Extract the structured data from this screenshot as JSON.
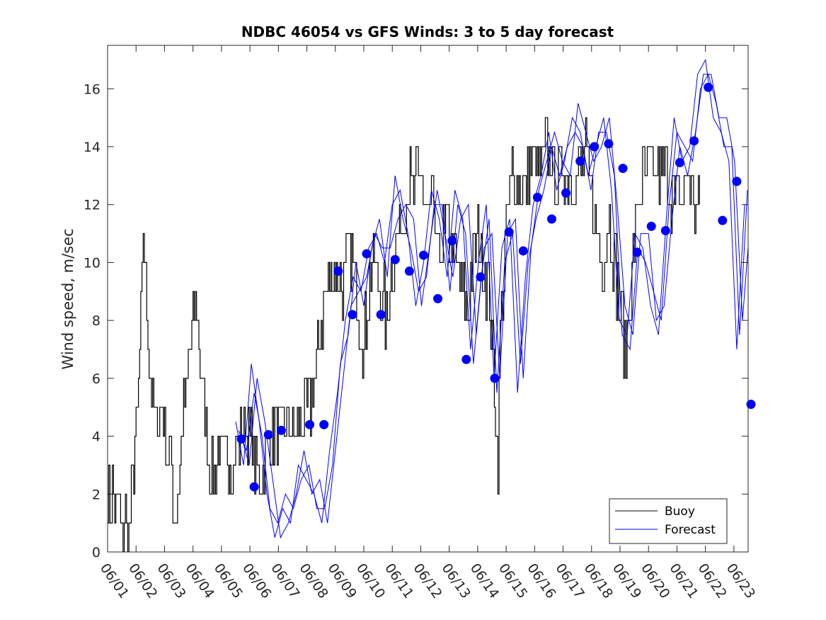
{
  "chart_data": {
    "type": "line",
    "title": "NDBC 46054 vs GFS Winds: 3 to 5 day forecast",
    "xlabel": "",
    "ylabel": "Wind speed, m/sec",
    "ylim": [
      0,
      17.5
    ],
    "yticks": [
      0,
      2,
      4,
      6,
      8,
      10,
      12,
      14,
      16
    ],
    "xlim_day": [
      0,
      22.5
    ],
    "xtick_labels": [
      "06/01",
      "06/02",
      "06/03",
      "06/04",
      "06/05",
      "06/06",
      "06/07",
      "06/08",
      "06/09",
      "06/10",
      "06/11",
      "06/12",
      "06/13",
      "06/14",
      "06/15",
      "06/16",
      "06/17",
      "06/18",
      "06/19",
      "06/20",
      "06/21",
      "06/22",
      "06/23"
    ],
    "grid": false,
    "legend": {
      "placement": "bottom-right",
      "entries": [
        "Buoy",
        "Forecast"
      ]
    },
    "colors": {
      "buoy": "#000000",
      "forecast": "#0000ff"
    },
    "buoy_profile": [
      [
        0.0,
        2.0
      ],
      [
        0.1,
        1.0
      ],
      [
        0.2,
        2.5
      ],
      [
        0.3,
        1.0
      ],
      [
        0.4,
        2.0
      ],
      [
        0.5,
        0.5
      ],
      [
        0.6,
        1.5
      ],
      [
        0.7,
        0.5
      ],
      [
        0.8,
        1.0
      ],
      [
        0.9,
        3.0
      ],
      [
        1.0,
        4.0
      ],
      [
        1.1,
        6.0
      ],
      [
        1.2,
        9.0
      ],
      [
        1.25,
        11.0
      ],
      [
        1.35,
        9.0
      ],
      [
        1.45,
        7.0
      ],
      [
        1.6,
        5.0
      ],
      [
        1.75,
        4.5
      ],
      [
        1.9,
        5.0
      ],
      [
        2.0,
        4.0
      ],
      [
        2.1,
        3.5
      ],
      [
        2.2,
        3.0
      ],
      [
        2.3,
        2.0
      ],
      [
        2.4,
        1.0
      ],
      [
        2.5,
        2.5
      ],
      [
        2.6,
        4.0
      ],
      [
        2.7,
        5.0
      ],
      [
        2.8,
        6.0
      ],
      [
        2.9,
        7.0
      ],
      [
        3.0,
        8.0
      ],
      [
        3.1,
        8.5
      ],
      [
        3.2,
        7.0
      ],
      [
        3.3,
        6.0
      ],
      [
        3.4,
        5.0
      ],
      [
        3.5,
        3.5
      ],
      [
        3.6,
        3.0
      ],
      [
        3.7,
        2.5
      ],
      [
        3.8,
        3.0
      ],
      [
        3.9,
        3.5
      ],
      [
        4.0,
        3.0
      ],
      [
        4.2,
        3.5
      ],
      [
        4.4,
        3.0
      ],
      [
        4.6,
        4.0
      ],
      [
        4.8,
        4.5
      ],
      [
        5.0,
        4.0
      ],
      [
        5.2,
        3.0
      ],
      [
        5.4,
        2.5
      ],
      [
        5.6,
        3.5
      ],
      [
        5.8,
        4.0
      ],
      [
        6.0,
        4.5
      ],
      [
        6.2,
        4.0
      ],
      [
        6.4,
        4.5
      ],
      [
        6.6,
        4.0
      ],
      [
        6.8,
        4.5
      ],
      [
        7.0,
        4.5
      ],
      [
        7.2,
        5.5
      ],
      [
        7.4,
        7.0
      ],
      [
        7.6,
        8.5
      ],
      [
        7.8,
        9.5
      ],
      [
        8.0,
        10.0
      ],
      [
        8.2,
        9.0
      ],
      [
        8.4,
        10.0
      ],
      [
        8.6,
        10.5
      ],
      [
        8.8,
        8.5
      ],
      [
        9.0,
        7.0
      ],
      [
        9.2,
        9.5
      ],
      [
        9.4,
        10.0
      ],
      [
        9.6,
        9.0
      ],
      [
        9.8,
        8.0
      ],
      [
        10.0,
        10.0
      ],
      [
        10.2,
        11.0
      ],
      [
        10.4,
        12.0
      ],
      [
        10.6,
        13.0
      ],
      [
        10.8,
        12.5
      ],
      [
        11.0,
        13.5
      ],
      [
        11.2,
        11.0
      ],
      [
        11.4,
        12.0
      ],
      [
        11.6,
        10.0
      ],
      [
        11.8,
        11.0
      ],
      [
        12.0,
        11.0
      ],
      [
        12.2,
        10.0
      ],
      [
        12.4,
        9.5
      ],
      [
        12.6,
        8.0
      ],
      [
        12.8,
        10.0
      ],
      [
        13.0,
        11.0
      ],
      [
        13.2,
        10.0
      ],
      [
        13.4,
        9.0
      ],
      [
        13.6,
        5.0
      ],
      [
        13.7,
        2.5
      ],
      [
        13.8,
        8.0
      ],
      [
        14.0,
        11.0
      ],
      [
        14.2,
        13.0
      ],
      [
        14.4,
        13.0
      ],
      [
        14.6,
        12.5
      ],
      [
        14.8,
        13.0
      ],
      [
        15.0,
        13.5
      ],
      [
        15.2,
        13.0
      ],
      [
        15.4,
        14.0
      ],
      [
        15.6,
        13.5
      ],
      [
        15.8,
        13.0
      ],
      [
        16.0,
        13.5
      ],
      [
        16.2,
        13.0
      ],
      [
        16.4,
        13.0
      ],
      [
        16.6,
        13.0
      ],
      [
        16.8,
        13.5
      ],
      [
        17.0,
        12.0
      ],
      [
        17.2,
        11.0
      ],
      [
        17.4,
        10.0
      ],
      [
        17.6,
        11.5
      ],
      [
        17.8,
        10.0
      ],
      [
        18.0,
        8.5
      ],
      [
        18.2,
        7.0
      ],
      [
        18.4,
        9.5
      ],
      [
        18.6,
        12.0
      ],
      [
        18.8,
        13.0
      ],
      [
        19.0,
        13.0
      ],
      [
        19.2,
        13.0
      ],
      [
        19.4,
        13.0
      ],
      [
        19.6,
        13.0
      ],
      [
        19.8,
        12.5
      ],
      [
        20.0,
        12.0
      ],
      [
        20.2,
        12.5
      ],
      [
        20.4,
        13.0
      ],
      [
        20.6,
        12.0
      ],
      [
        20.8,
        11.5
      ]
    ],
    "forecast_runs": [
      {
        "start_day": 4.5,
        "values": [
          4.5,
          3.0,
          6.5,
          4.5,
          2.0,
          0.5,
          1.5,
          1.0,
          3.0,
          2.5,
          2.0,
          1.0,
          3.5,
          5.5,
          8.0,
          9.5,
          9.0,
          10.5,
          11.0,
          10.0,
          12.0,
          12.5,
          11.0,
          8.5,
          10.0,
          12.5,
          11.5,
          9.5,
          12.5,
          11.5,
          7.0,
          10.0,
          12.0,
          6.0,
          10.5,
          11.5,
          5.5,
          9.5,
          12.0,
          13.0,
          14.5,
          12.5,
          13.5,
          15.0,
          14.5,
          13.0,
          14.0,
          15.0,
          12.5,
          8.0,
          7.5,
          11.0,
          10.5,
          8.5,
          7.5,
          11.5,
          15.0,
          13.5,
          14.0,
          16.5,
          17.0,
          15.0,
          14.5,
          13.5,
          7.0,
          12.0
        ]
      },
      {
        "start_day": 4.6,
        "values": [
          4.2,
          3.5,
          5.5,
          4.0,
          1.5,
          1.0,
          2.0,
          1.5,
          2.5,
          3.0,
          1.5,
          1.5,
          3.0,
          6.5,
          7.5,
          10.0,
          8.5,
          10.5,
          11.5,
          9.5,
          13.0,
          11.5,
          10.5,
          9.0,
          9.5,
          12.0,
          12.0,
          9.0,
          12.0,
          11.0,
          6.5,
          9.5,
          11.5,
          5.5,
          10.0,
          11.0,
          6.5,
          10.0,
          11.5,
          12.5,
          14.0,
          13.0,
          14.0,
          14.5,
          14.0,
          12.5,
          14.5,
          14.5,
          13.0,
          7.5,
          7.0,
          10.5,
          10.0,
          9.0,
          8.0,
          12.0,
          14.5,
          14.0,
          13.5,
          16.0,
          16.5,
          15.5,
          14.0,
          14.0,
          7.5,
          12.5
        ]
      },
      {
        "start_day": 4.7,
        "values": [
          4.0,
          3.0,
          6.0,
          4.5,
          2.5,
          0.5,
          1.0,
          2.0,
          3.5,
          2.0,
          2.5,
          1.0,
          3.5,
          6.0,
          8.5,
          9.0,
          9.5,
          11.0,
          10.5,
          10.5,
          11.5,
          12.0,
          11.5,
          8.5,
          10.5,
          12.5,
          11.0,
          9.5,
          11.5,
          12.0,
          7.5,
          10.5,
          11.0,
          6.0,
          11.0,
          11.5,
          6.0,
          10.5,
          12.5,
          13.5,
          14.5,
          13.5,
          13.0,
          15.5,
          14.5,
          13.5,
          14.0,
          15.0,
          12.0,
          8.5,
          7.5,
          11.0,
          11.0,
          8.0,
          8.5,
          11.5,
          14.0,
          13.0,
          14.5,
          16.5,
          16.5,
          15.0,
          15.0,
          13.5,
          8.0,
          11.5
        ]
      }
    ],
    "forecast_points": [
      [
        4.7,
        3.9
      ],
      [
        5.15,
        2.25
      ],
      [
        5.65,
        4.05
      ],
      [
        6.1,
        4.2
      ],
      [
        7.1,
        4.4
      ],
      [
        7.6,
        4.4
      ],
      [
        8.1,
        9.7
      ],
      [
        8.6,
        8.2
      ],
      [
        9.1,
        10.3
      ],
      [
        9.6,
        8.2
      ],
      [
        10.1,
        10.1
      ],
      [
        10.6,
        9.7
      ],
      [
        11.1,
        10.25
      ],
      [
        11.6,
        8.75
      ],
      [
        12.1,
        10.75
      ],
      [
        12.6,
        6.65
      ],
      [
        13.1,
        9.5
      ],
      [
        13.6,
        6.0
      ],
      [
        14.1,
        11.05
      ],
      [
        14.6,
        10.4
      ],
      [
        15.1,
        12.25
      ],
      [
        15.6,
        11.5
      ],
      [
        16.1,
        12.4
      ],
      [
        16.6,
        13.5
      ],
      [
        17.1,
        14.0
      ],
      [
        17.6,
        14.1
      ],
      [
        18.1,
        13.25
      ],
      [
        18.6,
        10.35
      ],
      [
        19.1,
        11.25
      ],
      [
        19.6,
        11.1
      ],
      [
        20.1,
        13.45
      ],
      [
        20.6,
        14.2
      ],
      [
        21.1,
        16.05
      ],
      [
        21.6,
        11.45
      ],
      [
        22.1,
        12.8
      ],
      [
        22.6,
        5.1
      ]
    ]
  }
}
